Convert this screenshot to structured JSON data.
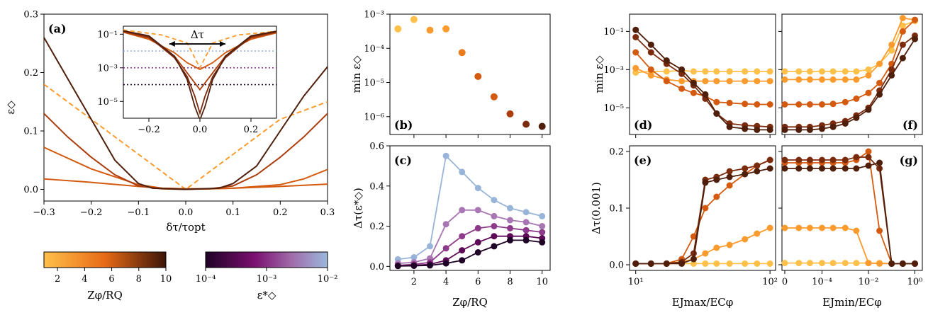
{
  "colors": {
    "zphi": [
      "#ffc04a",
      "#fb9b2e",
      "#ed7a1b",
      "#d45a10",
      "#ac3d0d",
      "#7b2b0d",
      "#4f1f0b"
    ],
    "eps": [
      "#1f0326",
      "#5c0a55",
      "#8e3a8a",
      "#a876b3",
      "#98b4d8"
    ]
  },
  "chart_data": [
    {
      "id": "a",
      "panel_label": "(a)",
      "type": "line",
      "xlabel": "δτ/τ_opt",
      "ylabel": "ε◇",
      "xlim": [
        -0.3,
        0.3
      ],
      "ylim": [
        -0.02,
        0.3
      ],
      "xticks": [
        "−0.3",
        "−0.2",
        "−0.1",
        "0.0",
        "0.1",
        "0.2",
        "0.3"
      ],
      "yticks": [
        "0.0",
        "0.1",
        "0.2",
        "0.3"
      ],
      "series": [
        {
          "x": [
            -0.3,
            -0.2,
            -0.1,
            0,
            0.1,
            0.2,
            0.3
          ],
          "values": [
            0.18,
            0.12,
            0.06,
            0.0,
            0.06,
            0.12,
            0.15
          ],
          "style": "dashed"
        },
        {
          "x": [
            -0.3,
            -0.2,
            -0.1,
            -0.05,
            0,
            0.05,
            0.1,
            0.2,
            0.3
          ],
          "values": [
            0.018,
            0.012,
            0.005,
            0.002,
            0.001,
            0.001,
            0.002,
            0.005,
            0.009
          ]
        },
        {
          "x": [
            -0.3,
            -0.2,
            -0.1,
            -0.05,
            0,
            0.05,
            0.1,
            0.2,
            0.25,
            0.3
          ],
          "values": [
            0.072,
            0.035,
            0.008,
            0.002,
            0.001,
            0.001,
            0.002,
            0.008,
            0.018,
            0.034
          ]
        },
        {
          "x": [
            -0.3,
            -0.25,
            -0.2,
            -0.15,
            -0.1,
            -0.05,
            0,
            0.05,
            0.1,
            0.15,
            0.2,
            0.25,
            0.3
          ],
          "values": [
            0.13,
            0.09,
            0.055,
            0.025,
            0.006,
            0.001,
            0.0,
            0.001,
            0.006,
            0.025,
            0.055,
            0.09,
            0.13
          ]
        },
        {
          "x": [
            -0.3,
            -0.25,
            -0.2,
            -0.15,
            -0.1,
            -0.07,
            0,
            0.07,
            0.1,
            0.15,
            0.2,
            0.25,
            0.3
          ],
          "values": [
            0.26,
            0.19,
            0.12,
            0.05,
            0.01,
            0.002,
            0.0,
            0.002,
            0.01,
            0.04,
            0.1,
            0.16,
            0.21
          ]
        }
      ]
    },
    {
      "id": "a_inset",
      "type": "line",
      "scale_y": "log",
      "xlabel": "",
      "ylabel": "",
      "annotation": "Δτ",
      "xlim": [
        -0.3,
        0.3
      ],
      "ylim": [
        1e-06,
        0.3
      ],
      "xticks": [
        "−0.2",
        "0.0",
        "0.2"
      ],
      "yticks": [
        "10⁻¹",
        "10⁻³",
        "10⁻⁵"
      ],
      "hlines": [
        0.01,
        0.001,
        0.0001
      ],
      "series": [
        {
          "x": [
            -0.3,
            -0.15,
            -0.05,
            0,
            0.05,
            0.15,
            0.3
          ],
          "values": [
            0.18,
            0.09,
            0.03,
            0.001,
            0.03,
            0.09,
            0.15
          ],
          "style": "dashed"
        },
        {
          "x": [
            -0.3,
            -0.2,
            -0.1,
            -0.05,
            0,
            0.05,
            0.1,
            0.2,
            0.3
          ],
          "values": [
            0.13,
            0.05,
            0.008,
            0.002,
            0.0008,
            0.002,
            0.008,
            0.05,
            0.12
          ]
        },
        {
          "x": [
            -0.3,
            -0.2,
            -0.1,
            -0.05,
            0,
            0.05,
            0.1,
            0.2,
            0.3
          ],
          "values": [
            0.14,
            0.06,
            0.005,
            0.0005,
            5e-05,
            0.0005,
            0.005,
            0.06,
            0.13
          ]
        },
        {
          "x": [
            -0.3,
            -0.2,
            -0.1,
            -0.05,
            -0.02,
            0,
            0.02,
            0.05,
            0.1,
            0.2,
            0.3
          ],
          "values": [
            0.15,
            0.07,
            0.004,
            0.0003,
            2e-05,
            2e-06,
            2e-05,
            0.0003,
            0.004,
            0.07,
            0.14
          ]
        },
        {
          "x": [
            -0.3,
            -0.2,
            -0.1,
            -0.05,
            -0.02,
            0,
            0.02,
            0.05,
            0.1,
            0.2,
            0.3
          ],
          "values": [
            0.16,
            0.08,
            0.005,
            0.0002,
            5e-06,
            8e-07,
            5e-06,
            0.0002,
            0.005,
            0.08,
            0.15
          ]
        }
      ]
    },
    {
      "id": "b",
      "panel_label": "(b)",
      "type": "scatter",
      "scale_y": "log",
      "xlabel": "",
      "ylabel": "min ε◇",
      "xlim": [
        0.5,
        10.5
      ],
      "ylim": [
        3e-07,
        0.001
      ],
      "yticks": [
        "10⁻³",
        "10⁻⁴",
        "10⁻⁵",
        "10⁻⁶"
      ],
      "x": [
        1,
        2,
        3,
        4,
        5,
        6,
        7,
        8,
        9,
        10
      ],
      "values": [
        0.00037,
        0.0007,
        0.00034,
        0.00037,
        7.5e-05,
        1.5e-05,
        3.8e-06,
        1.2e-06,
        6e-07,
        5.2e-07
      ]
    },
    {
      "id": "c",
      "panel_label": "(c)",
      "type": "line",
      "xlabel": "Zφ/RQ",
      "ylabel": "Δτ(ε*◇)",
      "xlim": [
        0.5,
        10.5
      ],
      "ylim": [
        -0.02,
        0.6
      ],
      "xticks": [
        "2",
        "4",
        "6",
        "8",
        "10"
      ],
      "yticks": [
        "0.0",
        "0.2",
        "0.4",
        "0.6"
      ],
      "x": [
        1,
        2,
        3,
        4,
        5,
        6,
        7,
        8,
        9,
        10
      ],
      "series": [
        {
          "values": [
            0.035,
            0.045,
            0.1,
            0.55,
            0.47,
            0.39,
            0.33,
            0.29,
            0.27,
            0.25
          ]
        },
        {
          "values": [
            0.015,
            0.02,
            0.04,
            0.21,
            0.28,
            0.28,
            0.25,
            0.23,
            0.22,
            0.2
          ]
        },
        {
          "values": [
            0.005,
            0.01,
            0.02,
            0.09,
            0.15,
            0.19,
            0.2,
            0.19,
            0.18,
            0.17
          ]
        },
        {
          "values": [
            0.003,
            0.005,
            0.01,
            0.03,
            0.08,
            0.12,
            0.15,
            0.15,
            0.15,
            0.14
          ]
        },
        {
          "values": [
            0.002,
            0.003,
            0.005,
            0.015,
            0.03,
            0.07,
            0.1,
            0.13,
            0.13,
            0.12
          ]
        }
      ]
    },
    {
      "id": "d",
      "panel_label": "(d)",
      "type": "line",
      "scale_x": "log",
      "scale_y": "log",
      "xlabel": "",
      "ylabel": "min ε◇",
      "xlim": [
        9,
        110
      ],
      "ylim": [
        4e-07,
        0.8
      ],
      "yticks": [
        "10⁻¹",
        "10⁻³",
        "10⁻⁵"
      ],
      "x": [
        10,
        13,
        17,
        22,
        27,
        33,
        40,
        50,
        65,
        80,
        100
      ],
      "series": [
        {
          "values": [
            0.0007,
            0.0008,
            0.0008,
            0.0009,
            0.0008,
            0.0008,
            0.0008,
            0.0008,
            0.0008,
            0.0008,
            0.0008
          ]
        },
        {
          "values": [
            0.0012,
            0.0005,
            0.0003,
            0.00025,
            0.00025,
            0.00025,
            0.00025,
            0.00025,
            0.00025,
            0.00025,
            0.00025
          ]
        },
        {
          "values": [
            0.008,
            0.001,
            0.00025,
            0.0001,
            6e-05,
            4e-05,
            2e-05,
            1.8e-05,
            1.6e-05,
            1.5e-05,
            1.5e-05
          ]
        },
        {
          "values": [
            0.05,
            0.008,
            0.002,
            0.0006,
            0.00015,
            3e-05,
            5e-06,
            1.5e-06,
            1.2e-06,
            1.1e-06,
            1e-06
          ]
        },
        {
          "values": [
            0.12,
            0.02,
            0.003,
            0.001,
            0.0002,
            5e-05,
            5e-06,
            1e-06,
            8e-07,
            7e-07,
            7e-07
          ]
        }
      ]
    },
    {
      "id": "e",
      "panel_label": "(e)",
      "type": "line",
      "scale_x": "log",
      "xlabel": "E_Jmax/E_Cφ",
      "ylabel": "Δτ(0.001)",
      "xlim": [
        9,
        110
      ],
      "ylim": [
        -0.01,
        0.21
      ],
      "xticks": [
        "10¹",
        "10²"
      ],
      "yticks": [
        "0.0",
        "0.1",
        "0.2"
      ],
      "x": [
        10,
        13,
        17,
        22,
        27,
        33,
        40,
        50,
        65,
        80,
        100
      ],
      "series": [
        {
          "values": [
            0.002,
            0.002,
            0.002,
            0.002,
            0.002,
            0.002,
            0.002,
            0.002,
            0.002,
            0.002,
            0.002
          ]
        },
        {
          "values": [
            0.002,
            0.002,
            0.002,
            0.005,
            0.01,
            0.02,
            0.03,
            0.035,
            0.045,
            0.055,
            0.065
          ]
        },
        {
          "values": [
            0.002,
            0.002,
            0.002,
            0.01,
            0.05,
            0.1,
            0.12,
            0.14,
            0.16,
            0.175,
            0.185
          ]
        },
        {
          "values": [
            0.002,
            0.002,
            0.002,
            0.005,
            0.02,
            0.15,
            0.155,
            0.165,
            0.17,
            0.175,
            0.185
          ]
        },
        {
          "values": [
            0.002,
            0.002,
            0.002,
            0.002,
            0.01,
            0.145,
            0.15,
            0.155,
            0.16,
            0.165,
            0.17
          ]
        }
      ]
    },
    {
      "id": "f",
      "panel_label": "(f)",
      "type": "line",
      "scale_x": "symlog",
      "scale_y": "log",
      "xlabel": "",
      "ylabel": "",
      "ylim": [
        4e-07,
        0.8
      ],
      "x": [
        0,
        1e-05,
        3e-05,
        0.0001,
        0.0003,
        0.001,
        0.003,
        0.01,
        0.03,
        0.1,
        0.3,
        1
      ],
      "series": [
        {
          "values": [
            0.0008,
            0.0008,
            0.0008,
            0.0008,
            0.0008,
            0.0008,
            0.0008,
            0.001,
            0.002,
            0.01,
            0.2,
            0.35
          ]
        },
        {
          "values": [
            0.0003,
            0.0003,
            0.0003,
            0.0003,
            0.0003,
            0.0003,
            0.0003,
            0.0005,
            0.002,
            0.02,
            0.5,
            0.4
          ]
        },
        {
          "values": [
            1.5e-05,
            1.5e-05,
            1.5e-05,
            1.5e-05,
            1.6e-05,
            2e-05,
            3e-05,
            6e-05,
            0.0002,
            0.002,
            0.1,
            0.4
          ]
        },
        {
          "values": [
            1e-06,
            1e-06,
            1e-06,
            1.2e-06,
            1.5e-06,
            2e-06,
            4e-06,
            1e-05,
            8e-05,
            0.001,
            0.02,
            0.06
          ]
        },
        {
          "values": [
            7e-07,
            7e-07,
            7e-07,
            8e-07,
            1e-06,
            1.5e-06,
            3e-06,
            8e-06,
            5e-05,
            0.0005,
            0.004,
            0.04
          ]
        }
      ]
    },
    {
      "id": "g",
      "panel_label": "(g)",
      "type": "line",
      "scale_x": "symlog",
      "xlabel": "E_Jmin/E_Cφ",
      "ylabel": "",
      "ylim": [
        -0.01,
        0.21
      ],
      "xticks": [
        "0",
        "10⁻⁴",
        "10⁻²",
        "10⁰"
      ],
      "x": [
        0,
        1e-05,
        3e-05,
        0.0001,
        0.0003,
        0.001,
        0.003,
        0.01,
        0.03,
        0.1,
        0.3,
        1
      ],
      "series": [
        {
          "values": [
            0.003,
            0.003,
            0.003,
            0.003,
            0.003,
            0.003,
            0.003,
            0.003,
            0.003,
            0.002,
            0.002,
            0.002
          ]
        },
        {
          "values": [
            0.065,
            0.065,
            0.065,
            0.065,
            0.065,
            0.065,
            0.06,
            0.003,
            0.002,
            0.002,
            0.002,
            0.002
          ]
        },
        {
          "values": [
            0.18,
            0.18,
            0.18,
            0.18,
            0.18,
            0.18,
            0.185,
            0.2,
            0.06,
            0.002,
            0.002,
            0.002
          ]
        },
        {
          "values": [
            0.185,
            0.185,
            0.185,
            0.185,
            0.185,
            0.185,
            0.19,
            0.19,
            0.17,
            0.002,
            0.002,
            0.002
          ]
        },
        {
          "values": [
            0.17,
            0.17,
            0.17,
            0.17,
            0.17,
            0.17,
            0.17,
            0.175,
            0.18,
            0.002,
            0.002,
            0.002
          ]
        }
      ]
    },
    {
      "id": "cb1",
      "type": "colorbar",
      "label": "Zφ/RQ",
      "ticks": [
        "2",
        "4",
        "6",
        "8",
        "10"
      ],
      "range": [
        1,
        10
      ]
    },
    {
      "id": "cb2",
      "type": "colorbar",
      "scale": "log",
      "label": "ε*◇",
      "ticks": [
        "10⁻⁴",
        "10⁻³",
        "10⁻²"
      ],
      "range": [
        0.0001,
        0.01
      ]
    }
  ]
}
